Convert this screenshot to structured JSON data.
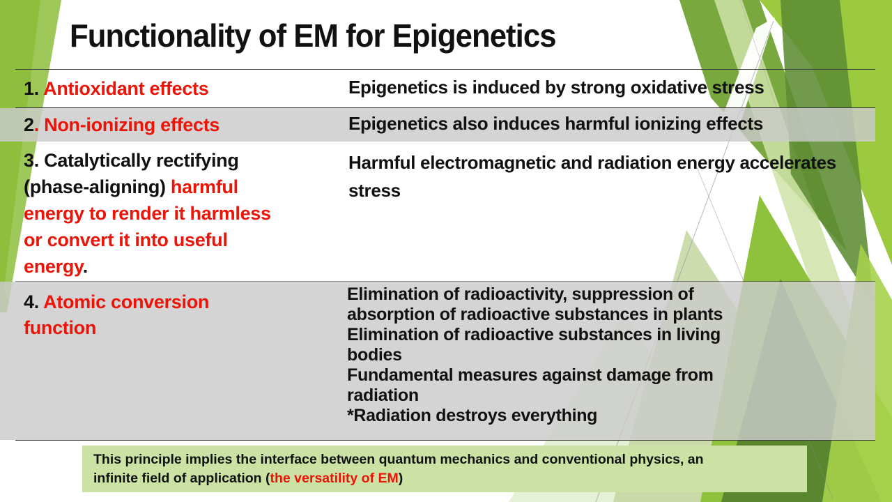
{
  "slide": {
    "title": "Functionality of EM for Epigenetics",
    "colors": {
      "accent_green": "#8dbf3c",
      "bright_green": "#9bca3e",
      "dark_green": "#55812e",
      "highlight_red": "#ea1408",
      "row_shade_gray": "#d6d6d6",
      "footer_bg_green": "#cbe2a4",
      "text_black": "#111111"
    },
    "table": {
      "row1": {
        "number": "1.",
        "term": "Antioxidant effects",
        "description": "Epigenetics is induced by strong oxidative stress"
      },
      "row2": {
        "number": "2",
        "number_dot": ".",
        "term": "Non-ionizing effects",
        "description": "Epigenetics also induces harmful ionizing effects"
      },
      "row3": {
        "term_line1_black": "3. Catalytically rectifying",
        "term_line2_black": "(phase-aligning) ",
        "term_line2_red": "harmful",
        "term_line3_red": "energy to render it harmless",
        "term_line4_red": "or convert it into useful",
        "term_line5_red": "energy",
        "term_line5_black": ".",
        "description": "Harmful electromagnetic and radiation energy accelerates stress"
      },
      "row4": {
        "number": "4.",
        "term_line1_red": "Atomic conversion",
        "term_line2_red": "function",
        "description_lines": [
          "Elimination of radioactivity, suppression of",
          "absorption of radioactive  substances in plants",
          "Elimination of radioactive substances in living",
          "bodies",
          "Fundamental measures against damage from",
          "radiation",
          "*Radiation destroys everything"
        ]
      }
    },
    "footer": {
      "text_before": "This principle implies the interface between quantum mechanics and  conventional physics, an infinite field of application (",
      "text_red": "the versatility of EM",
      "text_after": ")"
    }
  }
}
